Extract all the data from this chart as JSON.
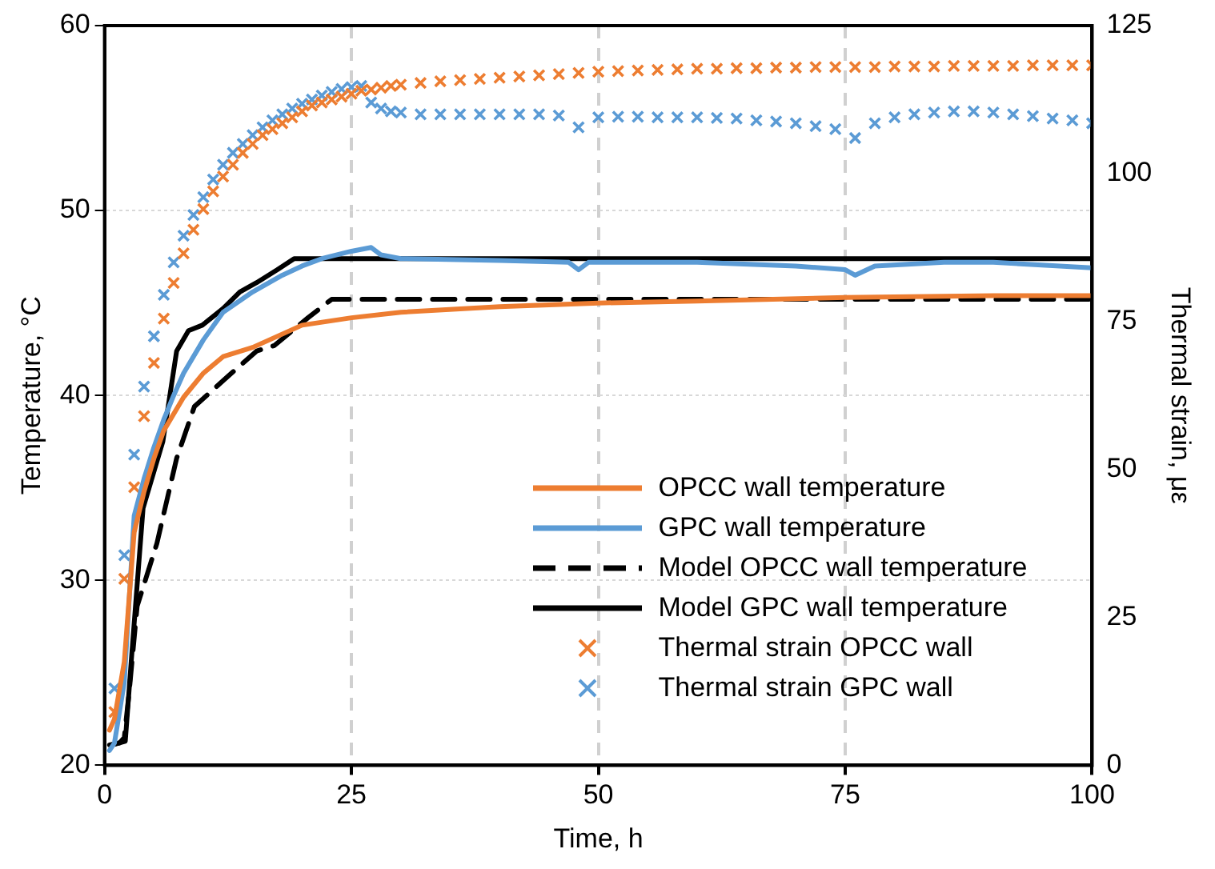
{
  "chart_data": {
    "type": "line",
    "xlabel": "Time, h",
    "ylabel": "Temperature, °C",
    "y2label": "Thermal strain, με",
    "xlim": [
      0,
      100
    ],
    "xticks": [
      0,
      25,
      50,
      75,
      100
    ],
    "ylim": [
      20,
      60
    ],
    "yticks": [
      20,
      30,
      40,
      50,
      60
    ],
    "y2lim": [
      0,
      125
    ],
    "y2ticks": [
      0,
      25,
      50,
      75,
      100,
      125
    ],
    "grid": true,
    "legend": "bottom right",
    "marker": "none",
    "series": [
      {
        "name": "OPCC wall temperature",
        "color": "#ed7d31",
        "line_style": "solid",
        "x": [
          0.5,
          1,
          2,
          3,
          4,
          5,
          6,
          8,
          10,
          12,
          15,
          20,
          25,
          30,
          40,
          50,
          60,
          75,
          90,
          100
        ],
        "values": [
          21.9,
          22.5,
          25.6,
          32.6,
          34.8,
          36.6,
          38.1,
          39.9,
          41.2,
          42.1,
          42.6,
          43.8,
          44.2,
          44.5,
          44.8,
          45.0,
          45.1,
          45.3,
          45.4,
          45.4
        ]
      },
      {
        "name": "GPC wall temperature",
        "color": "#5b9bd5",
        "line_style": "solid",
        "x": [
          0.5,
          1,
          2,
          3,
          4,
          5,
          6,
          7,
          8,
          10,
          12,
          15,
          18,
          20,
          22,
          25,
          27,
          28,
          30,
          40,
          47,
          48,
          49,
          60,
          70,
          75,
          76,
          78,
          85,
          90,
          100
        ],
        "values": [
          20.8,
          21.2,
          24.5,
          33.5,
          35.5,
          37.2,
          38.7,
          40.0,
          41.2,
          43.0,
          44.5,
          45.6,
          46.5,
          47.0,
          47.4,
          47.8,
          48.0,
          47.6,
          47.4,
          47.3,
          47.2,
          46.8,
          47.2,
          47.2,
          47.0,
          46.8,
          46.5,
          47.0,
          47.2,
          47.2,
          46.9
        ]
      },
      {
        "name": "Model OPCC wall temperature",
        "color": "#000000",
        "line_style": "dashed",
        "x": [
          0.5,
          1.5,
          2,
          2.5,
          3.3,
          5.3,
          7.3,
          9.1,
          12,
          15.4,
          17.2,
          20.6,
          23,
          30,
          50,
          75,
          100
        ],
        "values": [
          21.1,
          21.2,
          21.5,
          24.0,
          28.6,
          32.0,
          36.6,
          39.4,
          40.8,
          42.4,
          42.7,
          44.2,
          45.2,
          45.2,
          45.2,
          45.2,
          45.2
        ]
      },
      {
        "name": "Model GPC wall temperature",
        "color": "#000000",
        "line_style": "solid",
        "x": [
          0.7,
          2.1,
          2.7,
          3.9,
          5.9,
          7.3,
          8.5,
          9.9,
          12,
          13.7,
          15.4,
          17.5,
          19.2,
          25,
          50,
          75,
          100
        ],
        "values": [
          21.1,
          21.3,
          25.6,
          33.9,
          37.5,
          42.4,
          43.5,
          43.8,
          44.7,
          45.6,
          46.1,
          46.8,
          47.4,
          47.4,
          47.4,
          47.4,
          47.4
        ]
      },
      {
        "name": "Thermal strain OPCC wall",
        "color": "#ed7d31",
        "type": "scatter",
        "axis": "y2",
        "marker": "cross",
        "x": [
          1,
          2,
          3,
          4,
          5,
          6,
          7,
          8,
          9,
          10,
          11,
          12,
          13,
          14,
          15,
          16,
          17,
          18,
          19,
          20,
          21,
          22,
          23,
          24,
          25,
          26,
          27,
          28,
          29,
          30,
          32,
          34,
          36,
          38,
          40,
          42,
          44,
          46,
          48,
          50,
          52,
          54,
          56,
          58,
          60,
          62,
          64,
          66,
          68,
          70,
          72,
          74,
          76,
          78,
          80,
          82,
          84,
          86,
          88,
          90,
          92,
          94,
          96,
          98,
          100
        ],
        "values": [
          9,
          31.5,
          47,
          59,
          68,
          75.5,
          81.5,
          86.5,
          90.5,
          94,
          97,
          99.5,
          101.5,
          103.5,
          105,
          106.5,
          107.5,
          108.5,
          109.5,
          110.5,
          111.5,
          112,
          112.5,
          113,
          113.5,
          114,
          114.2,
          114.5,
          114.8,
          115,
          115.3,
          115.6,
          115.8,
          116,
          116.2,
          116.4,
          116.6,
          116.8,
          117,
          117.2,
          117.3,
          117.4,
          117.5,
          117.6,
          117.7,
          117.7,
          117.8,
          117.8,
          117.9,
          117.9,
          118,
          118,
          118,
          118,
          118.1,
          118.1,
          118.1,
          118.2,
          118.2,
          118.2,
          118.2,
          118.3,
          118.3,
          118.3,
          118.3
        ]
      },
      {
        "name": "Thermal strain GPC wall",
        "color": "#5b9bd5",
        "type": "scatter",
        "axis": "y2",
        "marker": "cross",
        "x": [
          1,
          2,
          3,
          4,
          5,
          6,
          7,
          8,
          9,
          10,
          11,
          12,
          13,
          14,
          15,
          16,
          17,
          18,
          19,
          20,
          21,
          22,
          23,
          24,
          25,
          26,
          27,
          28,
          29,
          30,
          32,
          34,
          36,
          38,
          40,
          42,
          44,
          46,
          48,
          50,
          52,
          54,
          56,
          58,
          60,
          62,
          64,
          66,
          68,
          70,
          72,
          74,
          76,
          78,
          80,
          82,
          84,
          86,
          88,
          90,
          92,
          94,
          96,
          98,
          100
        ],
        "values": [
          13,
          35.5,
          52.5,
          64,
          72.5,
          79.5,
          85,
          89.5,
          93,
          96,
          99,
          101.5,
          103.5,
          105,
          106.5,
          107.8,
          109,
          110,
          111,
          111.8,
          112.5,
          113.2,
          113.8,
          114.3,
          114.6,
          114.8,
          112,
          111,
          110.5,
          110.3,
          110,
          110,
          110,
          110,
          110,
          110,
          110,
          109.8,
          107.8,
          109.5,
          109.6,
          109.6,
          109.5,
          109.5,
          109.5,
          109.4,
          109.3,
          109,
          108.8,
          108.5,
          108,
          107.5,
          106,
          108.5,
          109.5,
          110,
          110.3,
          110.5,
          110.5,
          110.3,
          110,
          109.7,
          109.3,
          109,
          108.5
        ]
      }
    ]
  }
}
